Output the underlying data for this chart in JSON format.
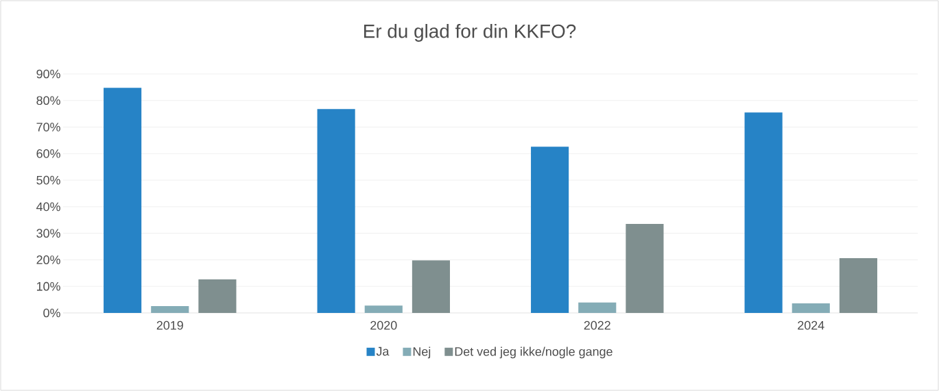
{
  "chart_data": {
    "type": "bar",
    "title": "Er du glad for din KKFO?",
    "categories": [
      "2019",
      "2020",
      "2022",
      "2024"
    ],
    "series": [
      {
        "name": "Ja",
        "color": "#2683c6",
        "values": [
          84.8,
          76.8,
          62.6,
          75.5
        ]
      },
      {
        "name": "Nej",
        "color": "#84acb6",
        "values": [
          2.6,
          2.8,
          3.9,
          3.6
        ]
      },
      {
        "name": "Det ved jeg ikke/nogle gange",
        "color": "#7f8f8f",
        "values": [
          12.6,
          19.8,
          33.5,
          20.6
        ]
      }
    ],
    "ylim": [
      0,
      90
    ],
    "yticks": [
      {
        "value": 0,
        "label": "0%"
      },
      {
        "value": 10,
        "label": "10%"
      },
      {
        "value": 20,
        "label": "20%"
      },
      {
        "value": 30,
        "label": "30%"
      },
      {
        "value": 40,
        "label": "40%"
      },
      {
        "value": 50,
        "label": "50%"
      },
      {
        "value": 60,
        "label": "60%"
      },
      {
        "value": 70,
        "label": "70%"
      },
      {
        "value": 80,
        "label": "80%"
      },
      {
        "value": 90,
        "label": "90%"
      }
    ],
    "grid": "y",
    "legend": "bottom"
  }
}
